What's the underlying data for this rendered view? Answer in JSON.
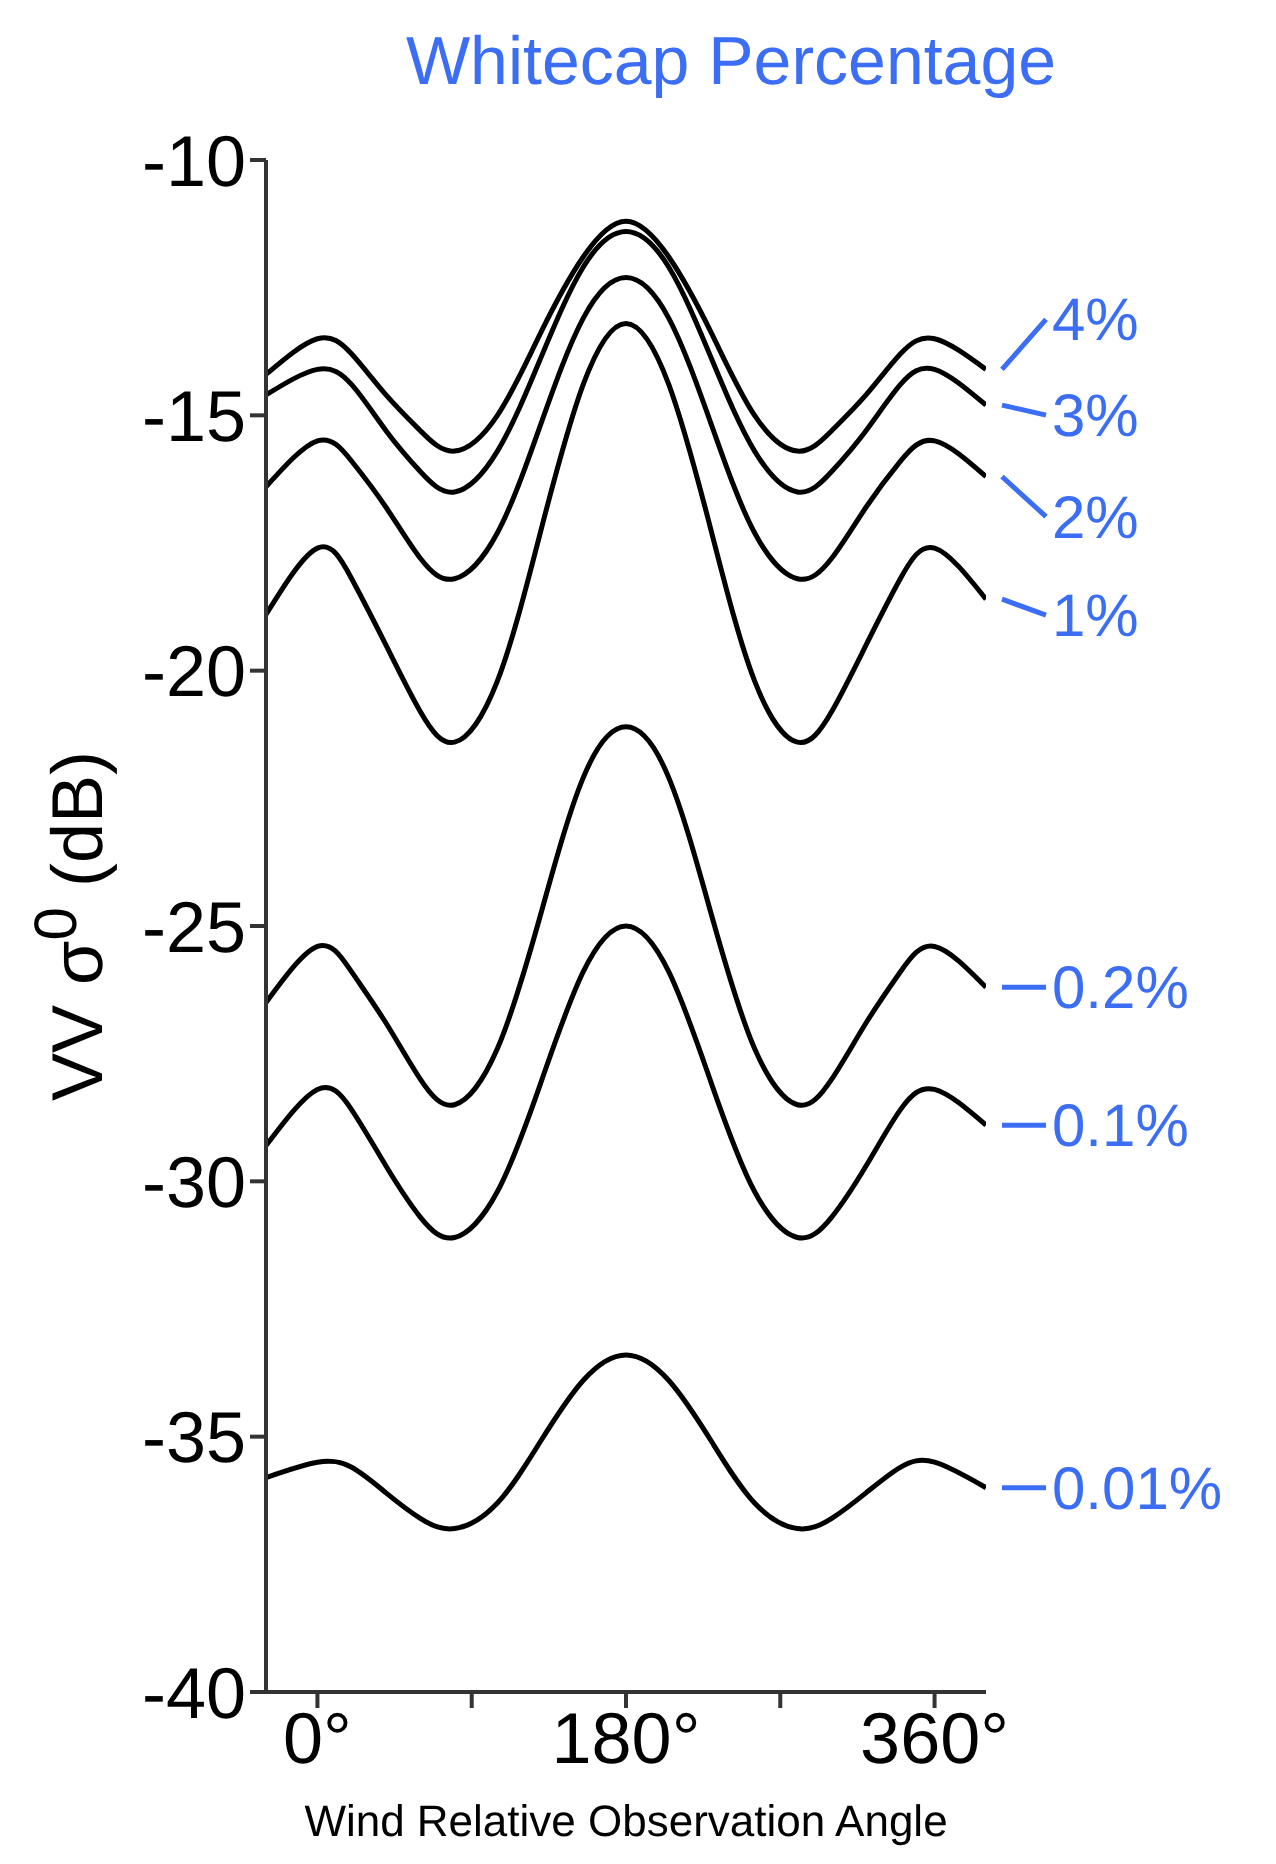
{
  "chart_data": {
    "type": "line",
    "title": "Whitecap Percentage",
    "xlabel": "Wind Relative Observation Angle",
    "ylabel": "VV σ$^{0}$ (dB)",
    "x": [
      -30,
      0,
      20,
      40,
      60,
      80,
      105,
      130,
      155,
      180,
      205,
      230,
      255,
      280,
      300,
      320,
      340,
      360,
      390
    ],
    "xlim": [
      -30,
      390
    ],
    "xticks": [
      {
        "value": 0,
        "label": "0°"
      },
      {
        "value": 90,
        "label": null
      },
      {
        "value": 180,
        "label": "180°"
      },
      {
        "value": 270,
        "label": null
      },
      {
        "value": 360,
        "label": "360°"
      }
    ],
    "ylim": [
      -40,
      -10
    ],
    "yticks": [
      -40,
      -35,
      -30,
      -25,
      -20,
      -15,
      -10
    ],
    "marker": "none",
    "line_style": "solid",
    "series": [
      {
        "name": "4%",
        "color": "#000000",
        "values": [
          -14.2,
          -13.5,
          -13.8,
          -14.6,
          -15.3,
          -15.7,
          -15.0,
          -13.4,
          -11.9,
          -11.2,
          -11.9,
          -13.4,
          -15.0,
          -15.7,
          -15.3,
          -14.6,
          -13.8,
          -13.5,
          -14.1
        ]
      },
      {
        "name": "3%",
        "color": "#000000",
        "values": [
          -14.6,
          -14.1,
          -14.4,
          -15.3,
          -16.1,
          -16.5,
          -15.7,
          -13.9,
          -12.1,
          -11.4,
          -12.1,
          -13.9,
          -15.7,
          -16.5,
          -16.1,
          -15.3,
          -14.4,
          -14.1,
          -14.8
        ]
      },
      {
        "name": "2%",
        "color": "#000000",
        "values": [
          -16.4,
          -15.5,
          -15.9,
          -16.8,
          -17.8,
          -18.2,
          -17.3,
          -15.2,
          -13.1,
          -12.3,
          -13.1,
          -15.2,
          -17.3,
          -18.2,
          -17.8,
          -16.8,
          -15.9,
          -15.5,
          -16.2
        ]
      },
      {
        "name": "1%",
        "color": "#000000",
        "values": [
          -18.9,
          -17.6,
          -18.2,
          -19.5,
          -20.8,
          -21.4,
          -20.2,
          -17.3,
          -14.4,
          -13.2,
          -14.4,
          -17.3,
          -20.2,
          -21.4,
          -20.8,
          -19.5,
          -18.2,
          -17.6,
          -18.6
        ]
      },
      {
        "name": "0.2%",
        "color": "#000000",
        "values": [
          -26.5,
          -25.4,
          -25.9,
          -26.9,
          -28.0,
          -28.5,
          -27.4,
          -24.8,
          -22.1,
          -21.1,
          -22.1,
          -24.8,
          -27.4,
          -28.5,
          -28.0,
          -26.9,
          -25.9,
          -25.4,
          -26.2
        ]
      },
      {
        "name": "0.1%",
        "color": "#000000",
        "values": [
          -29.3,
          -28.2,
          -28.6,
          -29.7,
          -30.7,
          -31.1,
          -30.2,
          -28.1,
          -25.9,
          -25.0,
          -25.9,
          -28.1,
          -30.2,
          -31.1,
          -30.7,
          -29.7,
          -28.6,
          -28.2,
          -28.9
        ]
      },
      {
        "name": "0.01%",
        "color": "#000000",
        "values": [
          -35.8,
          -35.5,
          -35.6,
          -36.1,
          -36.6,
          -36.8,
          -36.3,
          -35.1,
          -33.9,
          -33.4,
          -33.9,
          -35.1,
          -36.3,
          -36.8,
          -36.6,
          -36.1,
          -35.6,
          -35.5,
          -36.0
        ]
      }
    ]
  }
}
